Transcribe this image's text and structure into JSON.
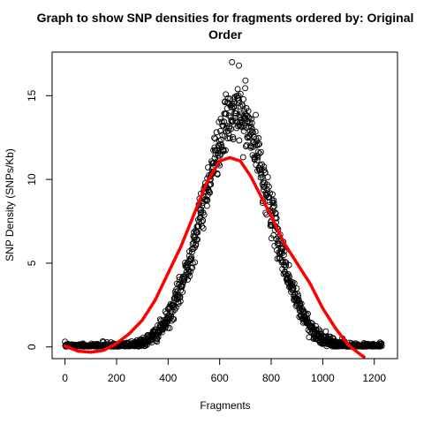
{
  "chart_data": {
    "type": "scatter",
    "title_lines": [
      "Graph to show SNP densities for fragments ordered by: Original",
      "Order"
    ],
    "xlabel": "Fragments",
    "ylabel": "SNP Density (SNPs/Kb)",
    "xlim": [
      -50,
      1290
    ],
    "ylim": [
      -0.7,
      17.6
    ],
    "x_ticks": [
      0,
      200,
      400,
      600,
      800,
      1000,
      1200
    ],
    "y_ticks": [
      0,
      5,
      10,
      15
    ],
    "scatter_model": {
      "n_points": 1230,
      "peak_x": 665,
      "peak_y": 13.9,
      "spread": 130,
      "noise": 0.8,
      "outliers": [
        [
          648,
          17.0
        ],
        [
          675,
          16.8
        ],
        [
          700,
          15.9
        ]
      ]
    },
    "series": [
      {
        "name": "smoothed fit",
        "color": "#ff0000",
        "x": [
          0,
          50,
          100,
          150,
          200,
          250,
          300,
          350,
          400,
          450,
          500,
          550,
          600,
          640,
          680,
          720,
          760,
          800,
          850,
          900,
          950,
          1000,
          1050,
          1100,
          1150,
          1160
        ],
        "y": [
          0.05,
          -0.25,
          -0.32,
          -0.2,
          0.2,
          0.8,
          1.6,
          2.8,
          4.4,
          6.0,
          7.9,
          9.8,
          11.1,
          11.3,
          11.1,
          10.2,
          9.0,
          7.8,
          6.2,
          5.0,
          3.8,
          2.3,
          1.1,
          0.1,
          -0.5,
          -0.6
        ]
      }
    ]
  }
}
